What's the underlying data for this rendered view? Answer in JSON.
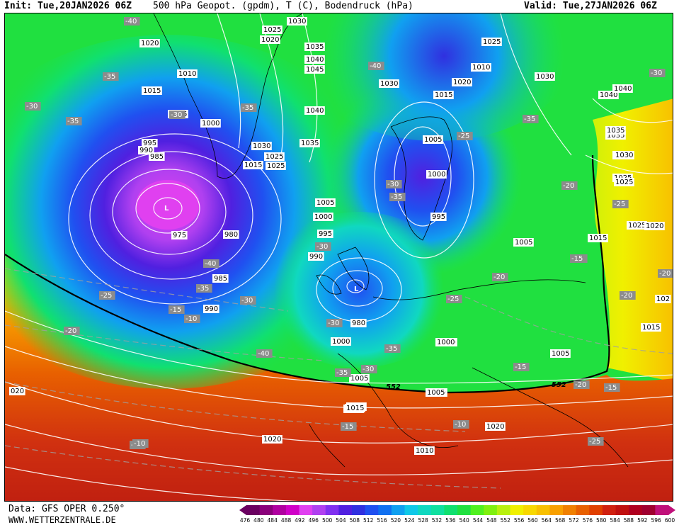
{
  "header": {
    "init": "Init: Tue,20JAN2026 06Z",
    "title": "500 hPa Geopot. (gpdm), T (C), Bodendruck (hPa)",
    "valid": "Valid: Tue,27JAN2026 06Z"
  },
  "footer": {
    "source": "Data: GFS OPER 0.250°",
    "site": "WWW.WETTERZENTRALE.DE"
  },
  "colorbar": {
    "labels": [
      "476",
      "480",
      "484",
      "488",
      "492",
      "496",
      "500",
      "504",
      "508",
      "512",
      "516",
      "520",
      "524",
      "528",
      "532",
      "536",
      "540",
      "544",
      "548",
      "552",
      "556",
      "560",
      "564",
      "568",
      "572",
      "576",
      "580",
      "584",
      "588",
      "592",
      "596",
      "600"
    ],
    "colors": [
      "#6a0060",
      "#8a007a",
      "#b000a0",
      "#d000c8",
      "#e040f0",
      "#b040f0",
      "#8030f0",
      "#5020e0",
      "#3030e0",
      "#2050f0",
      "#1070f0",
      "#10a0f0",
      "#10c8e8",
      "#10d8c0",
      "#10e0a0",
      "#10e070",
      "#20e040",
      "#50f020",
      "#80f010",
      "#b8f010",
      "#f0f000",
      "#f8d800",
      "#f8c000",
      "#f8a000",
      "#f08000",
      "#e86000",
      "#e04000",
      "#d02010",
      "#c01010",
      "#b00020",
      "#a00030",
      "#c0107a"
    ]
  },
  "pressure_labels": [
    "1030",
    "1025",
    "1020",
    "1035",
    "1040",
    "1045",
    "1010",
    "1015",
    "1005",
    "1000",
    "995",
    "990",
    "985",
    "980",
    "975",
    "1020",
    "1030",
    "1040",
    "1035",
    "1025",
    "1030",
    "1025",
    "1015",
    "1005",
    "1000",
    "995",
    "990",
    "985",
    "980",
    "1000",
    "1005",
    "1010",
    "1015",
    "1020",
    "1025",
    "1030",
    "1035",
    "1040",
    "1020",
    "1010",
    "1015",
    "1005",
    "1000",
    "995",
    "990",
    "1000",
    "1005",
    "1015",
    "1020",
    "1010",
    "1005",
    "1015",
    "1025",
    "1030",
    "1025",
    "1020",
    "020",
    "1000",
    "1005",
    "1015",
    "1025",
    "1030",
    "1035",
    "1040",
    "102",
    "1015"
  ],
  "temp_labels": [
    "-40",
    "-35",
    "-30",
    "-35",
    "-30",
    "-35",
    "-40",
    "-35",
    "-30",
    "-35",
    "-40",
    "-35",
    "-30",
    "-30",
    "-25",
    "-20",
    "-15",
    "-10",
    "-25",
    "-20",
    "-40",
    "-35",
    "-30",
    "-35",
    "-30",
    "-25",
    "-20",
    "-30",
    "-25",
    "-20",
    "-15",
    "-10",
    "-15",
    "-20",
    "-25",
    "-30",
    "-35",
    "-25",
    "-20",
    "-15",
    "-25",
    "-20",
    "-15",
    "-10"
  ],
  "contour_552": [
    "552",
    "552"
  ]
}
